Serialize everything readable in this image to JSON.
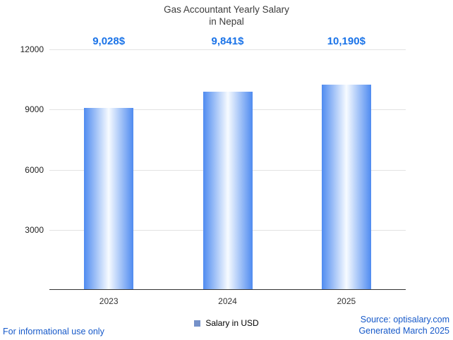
{
  "title": {
    "line1": "Gas Accountant Yearly Salary",
    "line2": "in Nepal"
  },
  "chart_data": {
    "type": "bar",
    "title": "Gas Accountant Yearly Salary in Nepal",
    "categories": [
      "2023",
      "2024",
      "2025"
    ],
    "values": [
      9028,
      9841,
      10190
    ],
    "value_labels": [
      "9,028$",
      "9,841$",
      "10,190$"
    ],
    "xlabel": "",
    "ylabel": "",
    "ylim": [
      0,
      12000
    ],
    "yticks": [
      3000,
      6000,
      9000,
      12000
    ],
    "grid": true,
    "legend": {
      "label": "Salary in USD",
      "swatch_color": "#7591c9",
      "position": "bottom"
    },
    "bar_gradient": {
      "edge": "#4f8bf0",
      "center": "#f7fbff"
    },
    "value_label_color": "#1a73e8",
    "axis_color": "#333333",
    "gridline_color": "#e2e2e2"
  },
  "footer": {
    "disclaimer": "For informational use only",
    "source": "Source: optisalary.com",
    "generated": "Generated March 2025"
  }
}
